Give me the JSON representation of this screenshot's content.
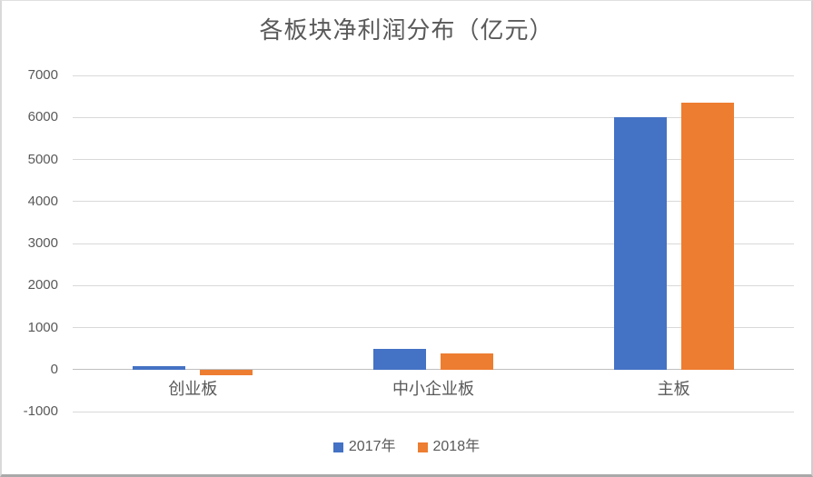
{
  "chart_data": {
    "type": "bar",
    "title": "各板块净利润分布（亿元）",
    "categories": [
      "创业板",
      "中小企业板",
      "主板"
    ],
    "series": [
      {
        "name": "2017年",
        "color": "#4472c4",
        "values": [
          75,
          500,
          6000
        ]
      },
      {
        "name": "2018年",
        "color": "#ed7d31",
        "values": [
          -140,
          390,
          6360
        ]
      }
    ],
    "xlabel": "",
    "ylabel": "",
    "ylim": [
      -1000,
      7000
    ],
    "ytick_interval": 1000,
    "ytick_labels": [
      "7000",
      "6000",
      "5000",
      "4000",
      "3000",
      "2000",
      "1000",
      "0",
      "-1000"
    ],
    "grid": true,
    "legend_position": "bottom",
    "colors": {
      "text": "#595959",
      "gridline": "#d9d9d9",
      "zero_axis": "#bfbfbf",
      "background": "#ffffff",
      "frame_border": "#d9d9d9"
    }
  }
}
